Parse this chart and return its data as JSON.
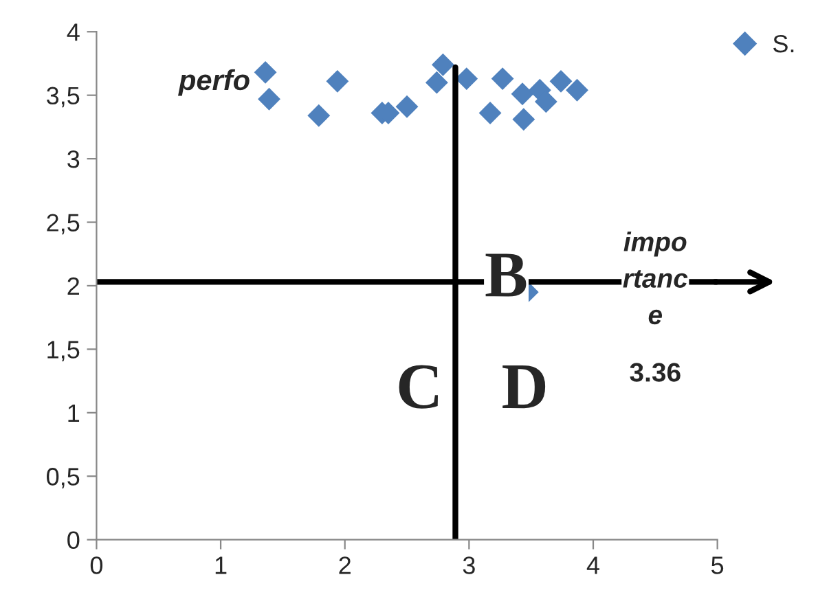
{
  "chart_data": {
    "type": "scatter",
    "series": [
      {
        "name": "S.",
        "color": "#4f81bd",
        "x": [
          1.36,
          1.39,
          1.79,
          1.94,
          2.3,
          2.35,
          2.5,
          2.74,
          2.79,
          2.98,
          3.17,
          3.27,
          3.43,
          3.44,
          3.57,
          3.62,
          3.74,
          3.87,
          3.47
        ],
        "values": [
          3.68,
          3.47,
          3.34,
          3.61,
          3.36,
          3.36,
          3.41,
          3.6,
          3.74,
          3.63,
          3.36,
          3.63,
          3.51,
          3.31,
          3.54,
          3.45,
          3.61,
          3.54,
          1.95
        ]
      }
    ],
    "marker": "diamond",
    "xlim": [
      0,
      5
    ],
    "xticks": [
      0,
      1,
      2,
      3,
      4,
      5
    ],
    "ylim": [
      0,
      4
    ],
    "yticks": [
      0,
      {
        "value": 0.5,
        "label": "0,5"
      },
      1,
      {
        "value": 1.5,
        "label": "1,5"
      },
      2,
      {
        "value": 2.5,
        "label": "2,5"
      },
      3,
      {
        "value": 3.5,
        "label": "3,5"
      },
      4
    ],
    "ref_lines": [
      {
        "axis": "x",
        "value": 2.89,
        "color": "#000000"
      },
      {
        "axis": "y",
        "value": 2.03,
        "color": "#000000"
      }
    ],
    "annotations": [
      "perfo",
      "impo\nrtanc\ne",
      "3.36",
      "B",
      "C",
      "D"
    ],
    "grid": false,
    "legend": "top right"
  }
}
